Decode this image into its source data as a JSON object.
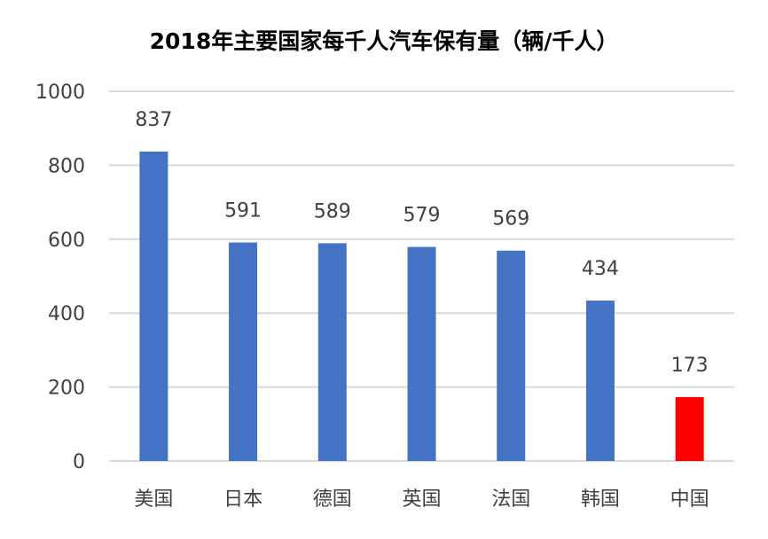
{
  "chart_data": {
    "type": "bar",
    "title": "2018年主要国家每千人汽车保有量（辆/千人）",
    "xlabel": "",
    "ylabel": "",
    "categories": [
      "美国",
      "日本",
      "德国",
      "英国",
      "法国",
      "韩国",
      "中国"
    ],
    "values": [
      837,
      591,
      589,
      579,
      569,
      434,
      173
    ],
    "data_labels": [
      "837",
      "591",
      "589",
      "579",
      "569",
      "434",
      "173"
    ],
    "ylim": [
      0,
      1000
    ],
    "yticks": [
      0,
      200,
      400,
      600,
      800,
      1000
    ],
    "ytick_labels": [
      "0",
      "200",
      "400",
      "600",
      "800",
      "1000"
    ],
    "grid": true,
    "legend": "none",
    "bar_colors": [
      "#4472c4",
      "#4472c4",
      "#4472c4",
      "#4472c4",
      "#4472c4",
      "#4472c4",
      "#ff0000"
    ]
  }
}
